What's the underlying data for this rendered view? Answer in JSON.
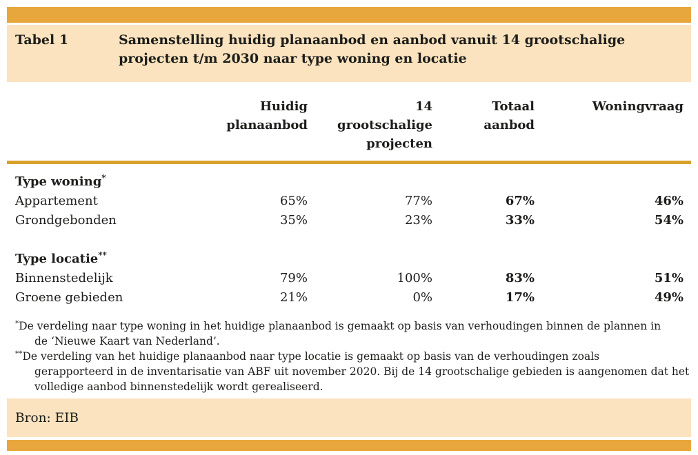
{
  "header": {
    "table_label": "Tabel 1",
    "title_lines": [
      "Samenstelling huidig planaanbod en aanbod vanuit 14 grootschalige",
      "projecten t/m 2030 naar type woning en locatie"
    ]
  },
  "columns": [
    {
      "lines": [
        "Huidig",
        "planaanbod"
      ]
    },
    {
      "lines": [
        "14",
        "grootschalige",
        "projecten"
      ]
    },
    {
      "lines": [
        "Totaal",
        "aanbod"
      ]
    },
    {
      "lines": [
        "Woningvraag"
      ]
    }
  ],
  "sections": [
    {
      "label": "Type woning",
      "marker": "*",
      "rows": [
        {
          "label": "Appartement",
          "values": [
            "65%",
            "77%",
            "67%",
            "46%"
          ]
        },
        {
          "label": "Grondgebonden",
          "values": [
            "35%",
            "23%",
            "33%",
            "54%"
          ]
        }
      ]
    },
    {
      "label": "Type locatie",
      "marker": "**",
      "rows": [
        {
          "label": "Binnenstedelijk",
          "values": [
            "79%",
            "100%",
            "83%",
            "51%"
          ]
        },
        {
          "label": "Groene gebieden",
          "values": [
            "21%",
            "0%",
            "17%",
            "49%"
          ]
        }
      ]
    }
  ],
  "footnotes": [
    {
      "marker": "*",
      "lines": [
        "De verdeling naar type woning in het huidige planaanbod is gemaakt op basis van verhoudingen binnen de plannen in",
        "de ‘Nieuwe Kaart van Nederland’."
      ]
    },
    {
      "marker": "**",
      "lines": [
        "De verdeling van het huidige planaanbod naar type locatie is gemaakt op basis van de verhoudingen zoals",
        "gerapporteerd in de inventarisatie van ABF uit november 2020. Bij de 14 grootschalige gebieden is aangenomen dat het",
        "volledige aanbod binnenstedelijk wordt gerealiseerd."
      ]
    }
  ],
  "source": "Bron: EIB",
  "colors": {
    "accent_bar": "#e8a73c",
    "band": "#fae3be",
    "rule": "#d9a12b",
    "text": "#1d1d1b"
  }
}
